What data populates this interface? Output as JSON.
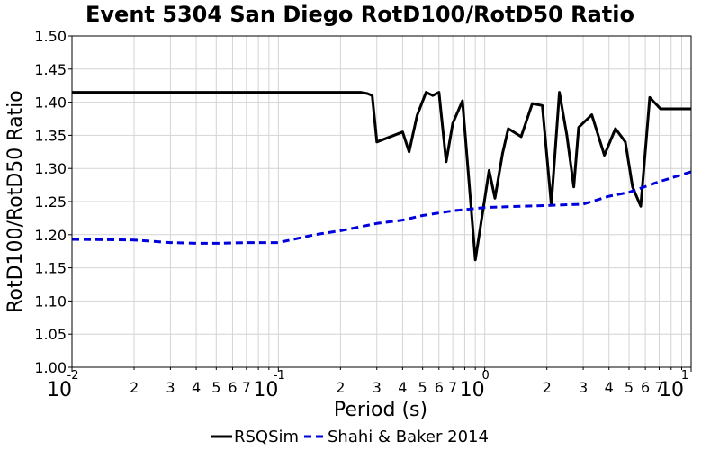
{
  "chart_data": {
    "type": "line",
    "title": "Event 5304 San Diego RotD100/RotD50 Ratio",
    "xlabel": "Period (s)",
    "ylabel": "RotD100/RotD50 Ratio",
    "xscale": "log",
    "xlim": [
      0.01,
      10
    ],
    "ylim": [
      1.0,
      1.5
    ],
    "y_ticks": [
      "1.00",
      "1.05",
      "1.10",
      "1.15",
      "1.20",
      "1.25",
      "1.30",
      "1.35",
      "1.40",
      "1.45",
      "1.50"
    ],
    "x_major_ticks": [
      {
        "base": "10",
        "exp": "-2"
      },
      {
        "base": "10",
        "exp": "-1"
      },
      {
        "base": "10",
        "exp": "0"
      },
      {
        "base": "10",
        "exp": "1"
      }
    ],
    "x_minor_labels": [
      "2",
      "3",
      "4",
      "5",
      "6",
      "7"
    ],
    "grid": true,
    "legend_position": "bottom",
    "series": [
      {
        "name": "RSQSim",
        "color": "#000000",
        "style": "solid",
        "x": [
          0.01,
          0.02,
          0.05,
          0.1,
          0.2,
          0.25,
          0.27,
          0.285,
          0.3,
          0.4,
          0.43,
          0.47,
          0.52,
          0.56,
          0.6,
          0.65,
          0.7,
          0.78,
          0.9,
          1.05,
          1.12,
          1.22,
          1.3,
          1.5,
          1.7,
          1.9,
          2.1,
          2.3,
          2.5,
          2.7,
          2.85,
          3.3,
          3.8,
          4.3,
          4.8,
          5.2,
          5.7,
          6.3,
          7.1,
          7.7,
          9.0,
          10.0
        ],
        "y": [
          1.415,
          1.415,
          1.415,
          1.415,
          1.415,
          1.415,
          1.413,
          1.41,
          1.34,
          1.355,
          1.325,
          1.38,
          1.415,
          1.41,
          1.415,
          1.31,
          1.368,
          1.402,
          1.162,
          1.297,
          1.255,
          1.323,
          1.36,
          1.348,
          1.398,
          1.395,
          1.245,
          1.415,
          1.35,
          1.272,
          1.362,
          1.381,
          1.32,
          1.36,
          1.34,
          1.272,
          1.243,
          1.407,
          1.39,
          1.39,
          1.39,
          1.39
        ]
      },
      {
        "name": "Shahi & Baker 2014",
        "color": "#0000dd",
        "style": "dashed",
        "x": [
          0.01,
          0.02,
          0.03,
          0.04,
          0.05,
          0.07,
          0.1,
          0.15,
          0.2,
          0.3,
          0.4,
          0.5,
          0.7,
          1.0,
          1.5,
          2.0,
          3.0,
          4.0,
          5.0,
          7.0,
          10.0
        ],
        "y": [
          1.193,
          1.192,
          1.188,
          1.187,
          1.187,
          1.188,
          1.188,
          1.2,
          1.206,
          1.217,
          1.222,
          1.229,
          1.236,
          1.241,
          1.243,
          1.244,
          1.246,
          1.258,
          1.264,
          1.28,
          1.295
        ]
      }
    ]
  }
}
